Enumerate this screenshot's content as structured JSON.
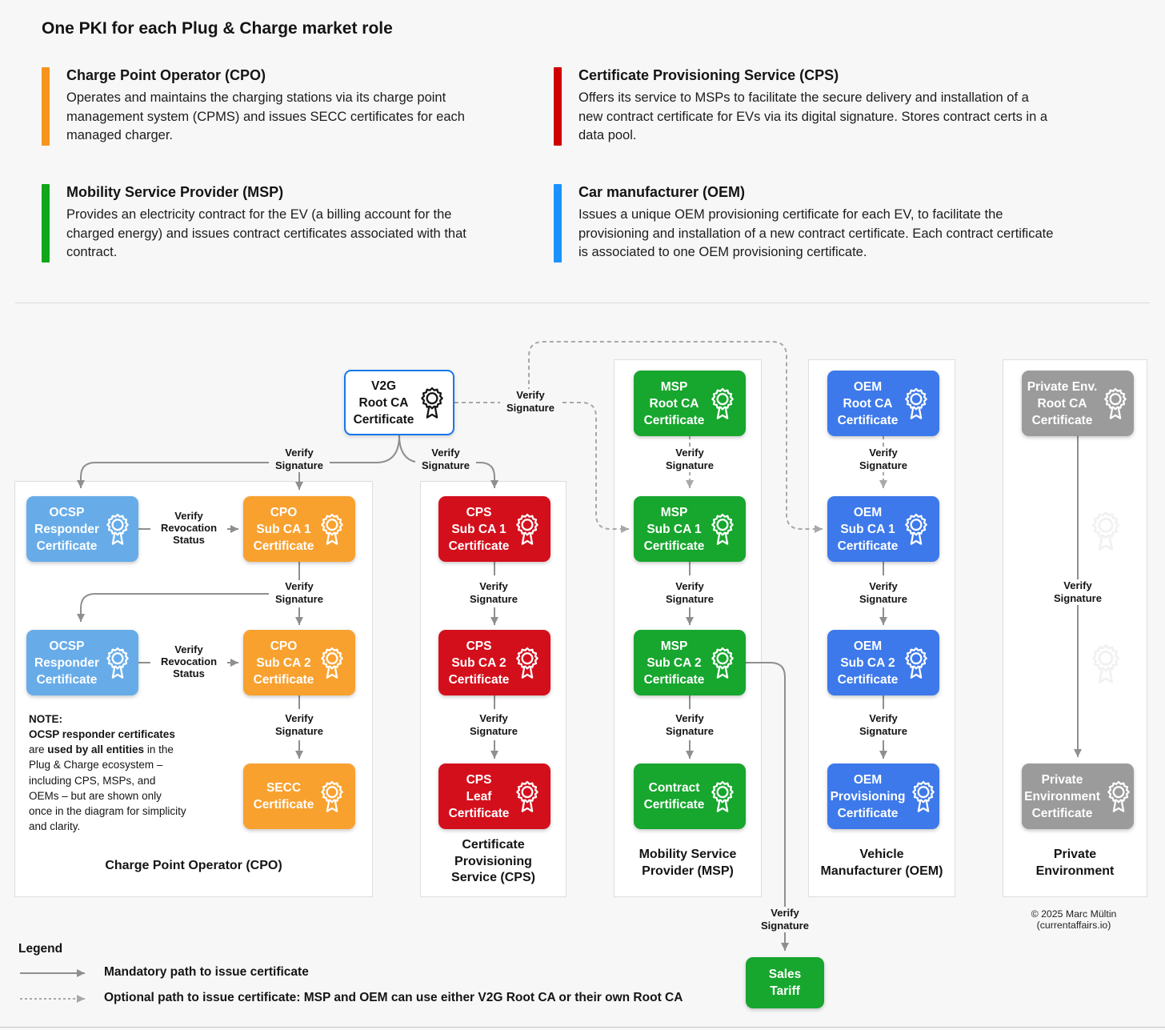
{
  "header": {
    "title": "One PKI for each Plug & Charge market role",
    "roles": [
      {
        "name": "Charge Point Operator (CPO)",
        "description": "Operates and maintains the charging stations via its charge point management system (CPMS) and issues SECC certificates for each managed charger.",
        "color": "#F7941E"
      },
      {
        "name": "Certificate Provisioning Service (CPS)",
        "description": "Offers its service to MSPs to facilitate the secure delivery and installation of a new contract certificate for EVs via its digital signature. Stores contract certs in a data pool.",
        "color": "#D10000"
      },
      {
        "name": "Mobility Service Provider (MSP)",
        "description": "Provides an electricity contract for the EV (a billing account for the charged energy) and issues contract certificates associated with that contract.",
        "color": "#0EA818"
      },
      {
        "name": "Car manufacturer (OEM)",
        "description": "Issues a unique OEM provisioning certificate for each EV, to facilitate the provisioning and installation of a new contract certificate. Each contract certificate is associated to one OEM provisioning certificate.",
        "color": "#1B92FF"
      }
    ]
  },
  "diagram": {
    "labels": {
      "verify_signature": "Verify\nSignature",
      "verify_revocation": "Verify\nRevocation\nStatus"
    },
    "boxes": {
      "v2g_root": "V2G\nRoot CA\nCertificate",
      "ocsp1": "OCSP\nResponder\nCertificate",
      "cpo_sub1": "CPO\nSub CA 1\nCertificate",
      "ocsp2": "OCSP\nResponder\nCertificate",
      "cpo_sub2": "CPO\nSub CA 2\nCertificate",
      "secc": "SECC\nCertificate",
      "cps_sub1": "CPS\nSub CA 1\nCertificate",
      "cps_sub2": "CPS\nSub CA 2\nCertificate",
      "cps_leaf": "CPS\nLeaf\nCertificate",
      "msp_root": "MSP\nRoot CA\nCertificate",
      "msp_sub1": "MSP\nSub CA 1\nCertificate",
      "msp_sub2": "MSP\nSub CA 2\nCertificate",
      "contract": "Contract\nCertificate",
      "oem_root": "OEM\nRoot CA\nCertificate",
      "oem_sub1": "OEM\nSub CA 1\nCertificate",
      "oem_sub2": "OEM\nSub CA 2\nCertificate",
      "oem_prov": "OEM\nProvisioning\nCertificate",
      "pe_root": "Private Env.\nRoot CA\nCertificate",
      "pe_cert": "Private\nEnvironment\nCertificate",
      "sales_tariff": "Sales\nTariff"
    },
    "column_titles": {
      "cpo": "Charge Point Operator (CPO)",
      "cps": "Certificate\nProvisioning\nService (CPS)",
      "msp": "Mobility Service\nProvider (MSP)",
      "oem": "Vehicle\nManufacturer (OEM)",
      "pe": "Private\nEnvironment"
    },
    "note": {
      "heading": "NOTE:",
      "segments": [
        {
          "text": "OCSP responder certificates",
          "bold": true
        },
        {
          "text": " are ",
          "bold": false
        },
        {
          "text": "used by all entities",
          "bold": true
        },
        {
          "text": " in the Plug & Charge ecosystem – including CPS, MSPs, and OEMs – but are shown only once in the diagram for simplicity and clarity.",
          "bold": false
        }
      ]
    },
    "copyright": "© 2025 Marc Mültin (currentaffairs.io)"
  },
  "legend": {
    "title": "Legend",
    "items": [
      {
        "style": "solid",
        "label": "Mandatory path to issue certificate"
      },
      {
        "style": "dashed",
        "label": "Optional path to issue certificate: MSP and OEM can use either V2G Root CA or their own Root CA"
      }
    ]
  },
  "colors": {
    "orange_box": "#F8A12F",
    "red_box": "#D40F1C",
    "green_box": "#17A62E",
    "blue_box": "#3D79EA",
    "light_blue_box": "#67ACE9",
    "gray_box": "#9B9B9B",
    "v2g_border": "#1677E9",
    "solid_line": "#8F8F8F",
    "dashed_line": "#A8A8A8",
    "background": "#F7F7F8",
    "panel": "#FFFFFF"
  }
}
